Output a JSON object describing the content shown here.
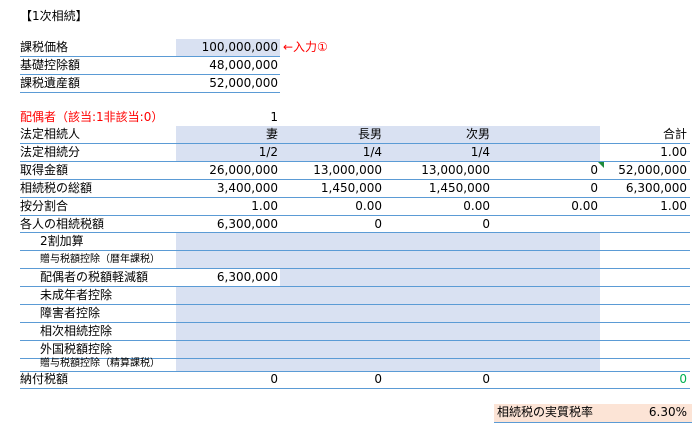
{
  "sheet_title": "【1次相続】",
  "summary": {
    "taxable_price_label": "課税価格",
    "taxable_price_value": "100,000,000",
    "input_note": "←入力①",
    "basic_deduction_label": "基礎控除額",
    "basic_deduction_value": "48,000,000",
    "taxable_estate_label": "課税遺産額",
    "taxable_estate_value": "52,000,000"
  },
  "spouse_flag": {
    "label": "配偶者（該当:1非該当:0）",
    "value": "1"
  },
  "columns": {
    "heirs_label": "法定相続人",
    "wife": "妻",
    "eldest_son": "長男",
    "second_son": "次男",
    "blank": "",
    "total": "合計"
  },
  "rows": [
    {
      "label": "法定相続分",
      "indent": false,
      "small": false,
      "values": [
        "1/2",
        "1/4",
        "1/4",
        "",
        "1.00"
      ]
    },
    {
      "label": "取得金額",
      "indent": false,
      "small": false,
      "values": [
        "26,000,000",
        "13,000,000",
        "13,000,000",
        "0",
        "52,000,000"
      ]
    },
    {
      "label": "相続税の総額",
      "indent": false,
      "small": false,
      "values": [
        "3,400,000",
        "1,450,000",
        "1,450,000",
        "0",
        "6,300,000"
      ]
    },
    {
      "label": "按分割合",
      "indent": false,
      "small": false,
      "values": [
        "1.00",
        "0.00",
        "0.00",
        "0.00",
        "1.00"
      ]
    },
    {
      "label": "各人の相続税額",
      "indent": false,
      "small": false,
      "values": [
        "6,300,000",
        "0",
        "0",
        "",
        ""
      ]
    },
    {
      "label": "2割加算",
      "indent": true,
      "small": false,
      "values": [
        "",
        "",
        "",
        "",
        ""
      ]
    },
    {
      "label": "贈与税額控除（暦年課税）",
      "indent": true,
      "small": true,
      "values": [
        "",
        "",
        "",
        "",
        ""
      ]
    },
    {
      "label": "配偶者の税額軽減額",
      "indent": true,
      "small": false,
      "values": [
        "6,300,000",
        "",
        "",
        "",
        ""
      ]
    },
    {
      "label": "未成年者控除",
      "indent": true,
      "small": false,
      "values": [
        "",
        "",
        "",
        "",
        ""
      ]
    },
    {
      "label": "障害者控除",
      "indent": true,
      "small": false,
      "values": [
        "",
        "",
        "",
        "",
        ""
      ]
    },
    {
      "label": "相次相続控除",
      "indent": true,
      "small": false,
      "values": [
        "",
        "",
        "",
        "",
        ""
      ]
    },
    {
      "label": "外国税額控除",
      "indent": true,
      "small": false,
      "values": [
        "",
        "",
        "",
        "",
        ""
      ]
    },
    {
      "label": "贈与税額控除（精算課税）",
      "indent": true,
      "small": true,
      "values": [
        "",
        "",
        "",
        "",
        ""
      ]
    },
    {
      "label": "納付税額",
      "indent": false,
      "small": false,
      "values": [
        "0",
        "0",
        "0",
        "",
        "0"
      ]
    }
  ],
  "effective_rate": {
    "label": "相続税の実質税率",
    "value": "6.30%"
  }
}
